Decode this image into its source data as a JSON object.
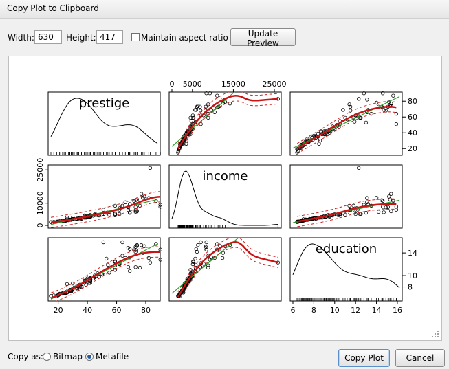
{
  "window": {
    "title": "Copy Plot to Clipboard"
  },
  "toolbar": {
    "width_label": "Width:",
    "width_value": "630",
    "height_label": "Height:",
    "height_value": "417",
    "aspect_label": "Maintain aspect ratio",
    "aspect_checked": false,
    "update_label": "Update Preview"
  },
  "plot": {
    "variables": [
      "prestige",
      "income",
      "education"
    ],
    "prestige_ticks": [
      "20",
      "40",
      "60",
      "80"
    ],
    "income_ticks": [
      "0",
      "5000",
      "15000",
      "25000"
    ],
    "income_left_ticks": [
      "0",
      "10000",
      "25000"
    ],
    "education_ticks": [
      "6",
      "8",
      "10",
      "12",
      "14",
      "16"
    ],
    "prestige_right_ticks": [
      "20",
      "40",
      "60",
      "80"
    ],
    "education_right_ticks": [
      "8",
      "10",
      "14"
    ]
  },
  "chart_data": {
    "type": "scatter",
    "variables": [
      "prestige",
      "income",
      "education"
    ],
    "axes": {
      "prestige": {
        "range": [
          15,
          88
        ],
        "ticks": [
          20,
          40,
          60,
          80
        ]
      },
      "income": {
        "range": [
          0,
          26000
        ],
        "ticks_top": [
          0,
          5000,
          15000,
          25000
        ],
        "ticks_left": [
          0,
          10000,
          25000
        ]
      },
      "education": {
        "range": [
          6,
          16.2
        ],
        "ticks_bottom": [
          6,
          8,
          10,
          12,
          14,
          16
        ],
        "ticks_right": [
          8,
          10,
          14
        ]
      }
    },
    "diagonal": "density",
    "series": [
      {
        "name": "prestige",
        "values": [
          82,
          83,
          90,
          76,
          90,
          87,
          73,
          77,
          73,
          72,
          69,
          51,
          64,
          74,
          74,
          79,
          68,
          73,
          69,
          53,
          64,
          66,
          78,
          59,
          62,
          54,
          59,
          62,
          57,
          69,
          68,
          59,
          55,
          59,
          62,
          73,
          45,
          40,
          26,
          42,
          50,
          48,
          38,
          49,
          36,
          30,
          44,
          40,
          35,
          38,
          38,
          42,
          47,
          34,
          46,
          51,
          42,
          45,
          40,
          38,
          42,
          42,
          36,
          30,
          33,
          34,
          42,
          26,
          39,
          29,
          29,
          36,
          42,
          33,
          28,
          20,
          27,
          41,
          28,
          25,
          30,
          25,
          29,
          31,
          26,
          19,
          23,
          26,
          35,
          21,
          15,
          34,
          20,
          23,
          29,
          17,
          25,
          21,
          33,
          24,
          28,
          28
        ]
      },
      {
        "name": "income",
        "values": [
          12351,
          25879,
          9271,
          8865,
          8403,
          11030,
          8258,
          14163,
          11377,
          11023,
          5902,
          7059,
          8425,
          11730,
          6336,
          13000,
          8150,
          6130,
          9593,
          5700,
          8895,
          10432,
          12480,
          5186,
          7100,
          5820,
          5200,
          5100,
          5800,
          5652,
          7000,
          4550,
          4761,
          8865,
          7730,
          6862,
          5000,
          4300,
          3500,
          4750,
          4900,
          4500,
          4200,
          4700,
          3000,
          3500,
          4400,
          4000,
          3600,
          3800,
          3500,
          4400,
          4600,
          3200,
          4900,
          5100,
          4300,
          4700,
          3700,
          4500,
          4000,
          3800,
          3200,
          2900,
          3100,
          3200,
          3900,
          2800,
          3500,
          2700,
          2600,
          3200,
          4000,
          3000,
          2600,
          1800,
          2300,
          3600,
          2500,
          2200,
          2800,
          2000,
          2600,
          2900,
          2300,
          1700,
          2100,
          2400,
          3200,
          1900,
          1500,
          3100,
          1800,
          2000,
          2500,
          1600,
          2200,
          1900,
          2900,
          2100,
          2500,
          2600
        ]
      },
      {
        "name": "education",
        "values": [
          13.1,
          12.3,
          12.8,
          11.4,
          14.6,
          15.6,
          15.1,
          15.4,
          14.5,
          14.6,
          14.7,
          15.9,
          15.9,
          15.3,
          15.4,
          15.2,
          14.9,
          14.2,
          13.2,
          13.0,
          13.5,
          13.1,
          14.0,
          12.5,
          12.2,
          11.9,
          12.4,
          12.0,
          11.2,
          10.8,
          11.5,
          11.0,
          10.5,
          11.8,
          12.1,
          11.5,
          10.0,
          9.5,
          8.5,
          9.4,
          10.2,
          9.8,
          9.0,
          10.3,
          8.2,
          8.6,
          9.5,
          9.2,
          8.4,
          9.1,
          8.8,
          9.6,
          10.4,
          8.1,
          9.9,
          10.5,
          9.0,
          9.7,
          8.9,
          9.3,
          9.1,
          8.7,
          8.0,
          7.6,
          8.2,
          8.3,
          9.5,
          7.0,
          8.4,
          7.2,
          7.5,
          8.0,
          9.2,
          7.8,
          7.3,
          6.5,
          7.1,
          8.7,
          7.4,
          6.9,
          7.7,
          6.8,
          7.3,
          7.9,
          7.0,
          6.4,
          6.9,
          7.2,
          8.1,
          6.7,
          6.4,
          7.9,
          6.6,
          6.8,
          7.4,
          6.5,
          7.0,
          6.8,
          7.6,
          7.0,
          7.3,
          7.5
        ]
      }
    ]
  },
  "footer": {
    "copy_as_label": "Copy as:",
    "bitmap_label": "Bitmap",
    "metafile_label": "Metafile",
    "selected": "Metafile",
    "copy_button": "Copy Plot",
    "cancel_button": "Cancel"
  }
}
